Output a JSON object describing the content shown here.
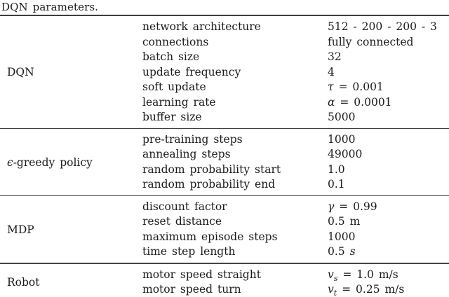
{
  "caption": "DQN parameters.",
  "table": {
    "sections": [
      {
        "group": [
          {
            "text": "DQN",
            "style": ""
          }
        ],
        "rows": [
          {
            "param": "network architecture",
            "value": [
              {
                "text": "512 - 200 - 200 - 3",
                "style": ""
              }
            ]
          },
          {
            "param": "connections",
            "value": [
              {
                "text": "fully connected",
                "style": ""
              }
            ]
          },
          {
            "param": "batch size",
            "value": [
              {
                "text": "32",
                "style": ""
              }
            ]
          },
          {
            "param": "update frequency",
            "value": [
              {
                "text": "4",
                "style": ""
              }
            ]
          },
          {
            "param": "soft update",
            "value": [
              {
                "text": "τ",
                "style": "i"
              },
              {
                "text": " = 0.001",
                "style": ""
              }
            ]
          },
          {
            "param": "learning rate",
            "value": [
              {
                "text": "α",
                "style": "i"
              },
              {
                "text": " = 0.0001",
                "style": ""
              }
            ]
          },
          {
            "param": "buffer size",
            "value": [
              {
                "text": "5000",
                "style": ""
              }
            ]
          }
        ]
      },
      {
        "group": [
          {
            "text": "ϵ",
            "style": "i"
          },
          {
            "text": "-greedy policy",
            "style": ""
          }
        ],
        "rows": [
          {
            "param": "pre-training steps",
            "value": [
              {
                "text": "1000",
                "style": ""
              }
            ]
          },
          {
            "param": "annealing steps",
            "value": [
              {
                "text": "49000",
                "style": ""
              }
            ]
          },
          {
            "param": "random probability start",
            "value": [
              {
                "text": "1.0",
                "style": ""
              }
            ]
          },
          {
            "param": "random probability end",
            "value": [
              {
                "text": "0.1",
                "style": ""
              }
            ]
          }
        ]
      },
      {
        "group": [
          {
            "text": "MDP",
            "style": ""
          }
        ],
        "rows": [
          {
            "param": "discount factor",
            "value": [
              {
                "text": "γ",
                "style": "i"
              },
              {
                "text": " = 0.99",
                "style": ""
              }
            ]
          },
          {
            "param": "reset distance",
            "value": [
              {
                "text": "0.5 m",
                "style": ""
              }
            ]
          },
          {
            "param": "maximum episode steps",
            "value": [
              {
                "text": "1000",
                "style": ""
              }
            ]
          },
          {
            "param": "time step length",
            "value": [
              {
                "text": "0.5 ",
                "style": ""
              },
              {
                "text": "s",
                "style": "i"
              }
            ]
          }
        ]
      },
      {
        "group": [
          {
            "text": "Robot",
            "style": ""
          }
        ],
        "rows": [
          {
            "param": "motor speed straight",
            "value": [
              {
                "text": "v",
                "style": "i"
              },
              {
                "text": "s",
                "style": "isub"
              },
              {
                "text": " = 1.0 m/s",
                "style": ""
              }
            ]
          },
          {
            "param": "motor speed turn",
            "value": [
              {
                "text": "v",
                "style": "i"
              },
              {
                "text": "t",
                "style": "isub"
              },
              {
                "text": " = 0.25 m/s",
                "style": ""
              }
            ]
          }
        ]
      }
    ]
  },
  "colors": {
    "text": "#1b1b1b",
    "rule": "#3d3d3d",
    "background": "#ffffff"
  }
}
